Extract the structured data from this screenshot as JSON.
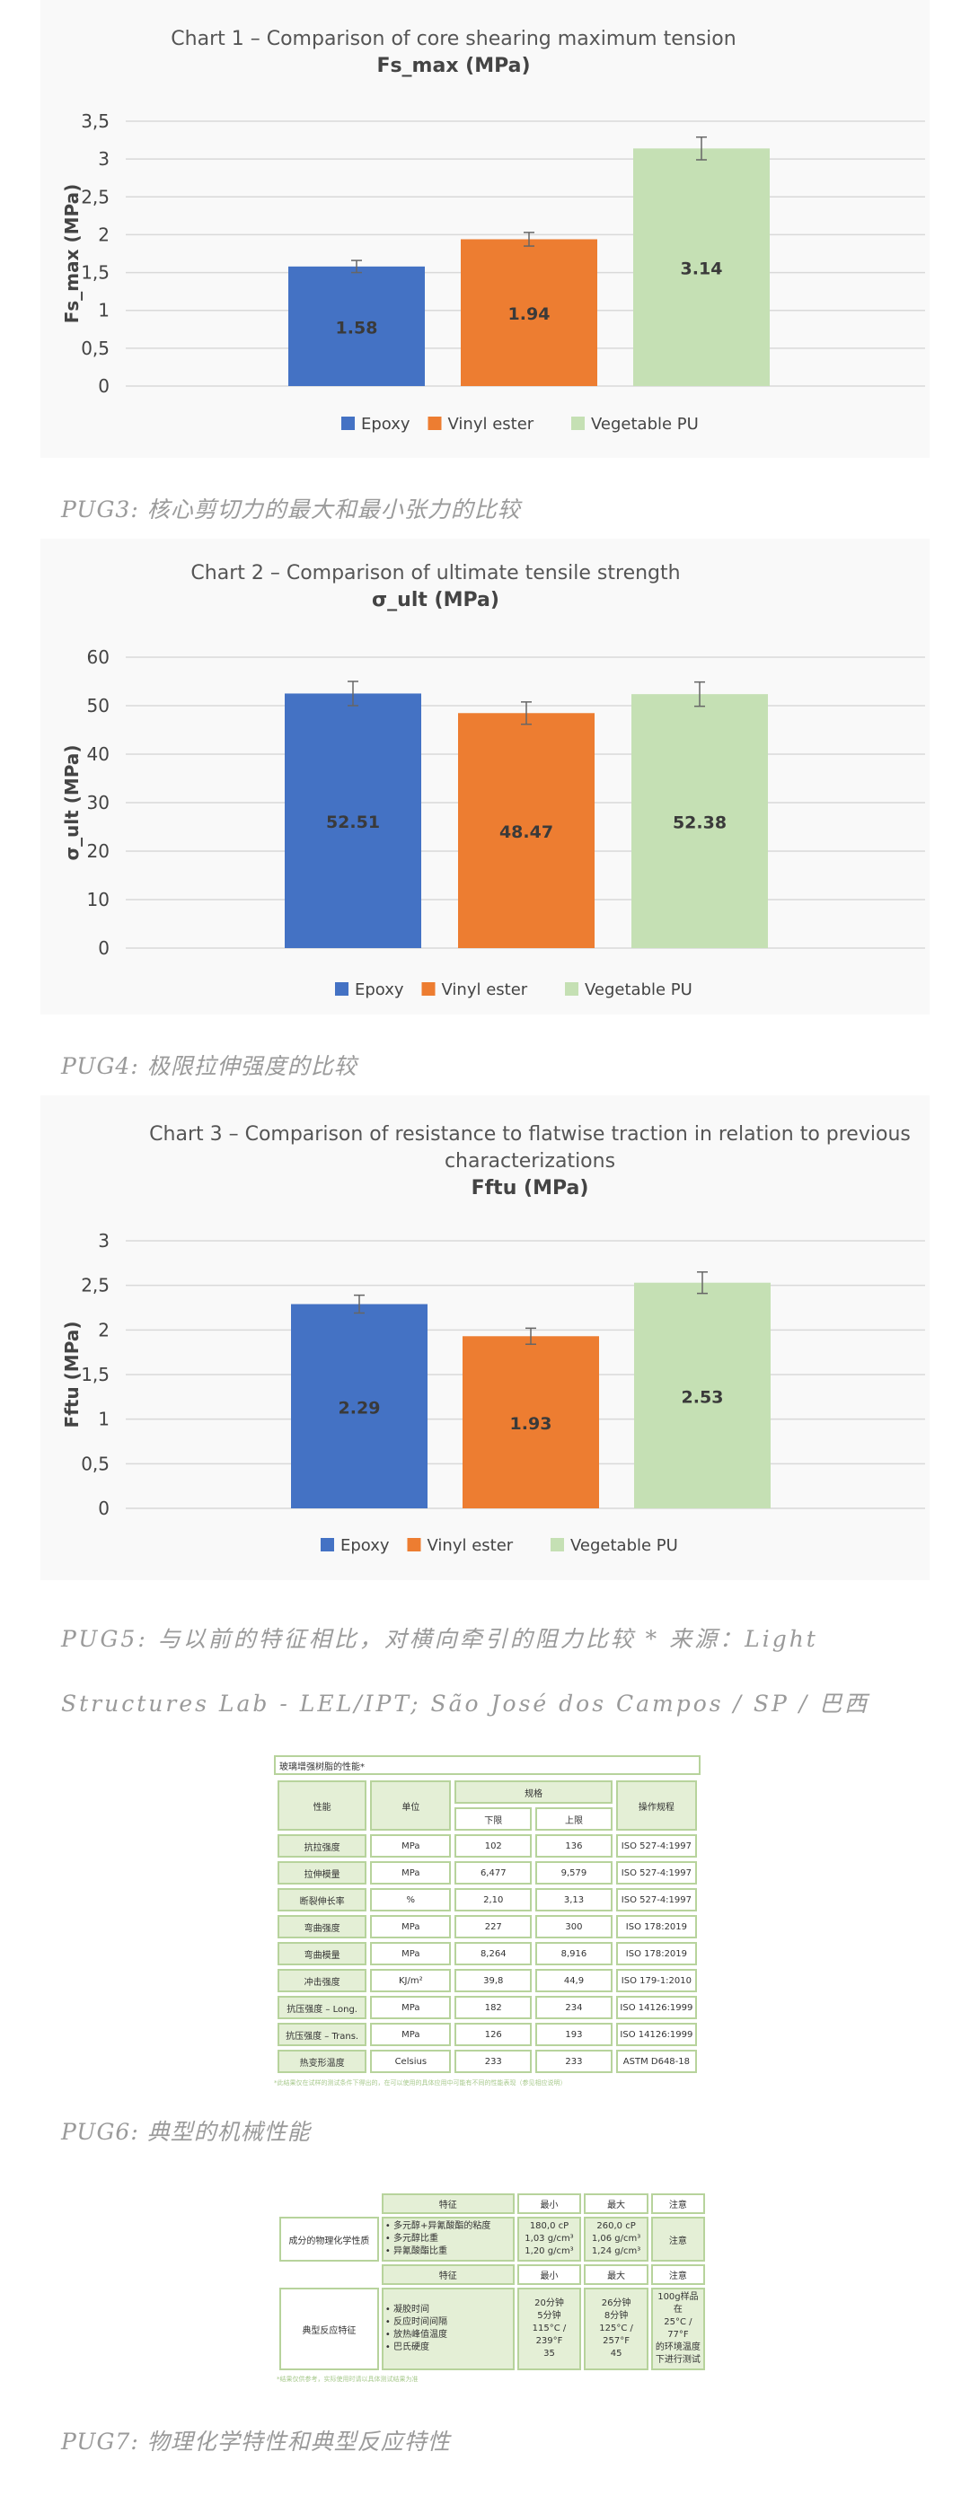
{
  "chart_data": [
    {
      "type": "bar",
      "title": "Chart 1 – Comparison of core shearing maximum tension",
      "subtitle": "Fs_max (MPa)",
      "ylabel": "Fs_max (MPa)",
      "xlabel": "",
      "ylim": [
        0,
        3.5
      ],
      "yticks": [
        "0",
        "0,5",
        "1",
        "1,5",
        "2",
        "2,5",
        "3",
        "3,5"
      ],
      "ytick_values": [
        0,
        0.5,
        1,
        1.5,
        2,
        2.5,
        3,
        3.5
      ],
      "categories": [
        "Epoxy",
        "Vinyl ester",
        "Vegetable PU"
      ],
      "values": [
        1.58,
        1.94,
        3.14
      ],
      "value_labels": [
        "1.58",
        "1.94",
        "3.14"
      ],
      "errors": [
        0.08,
        0.09,
        0.15
      ],
      "colors": [
        "#4472c4",
        "#ed7d31",
        "#c5e0b4"
      ],
      "legend": "bottom",
      "grid": true
    },
    {
      "type": "bar",
      "title": "Chart 2 – Comparison of ultimate tensile strength",
      "subtitle": "σ_ult (MPa)",
      "ylabel": "σ_ult (MPa)",
      "xlabel": "",
      "ylim": [
        0,
        60
      ],
      "yticks": [
        "0",
        "10",
        "20",
        "30",
        "40",
        "50",
        "60"
      ],
      "ytick_values": [
        0,
        10,
        20,
        30,
        40,
        50,
        60
      ],
      "categories": [
        "Epoxy",
        "Vinyl ester",
        "Vegetable PU"
      ],
      "values": [
        52.51,
        48.47,
        52.38
      ],
      "value_labels": [
        "52.51",
        "48.47",
        "52.38"
      ],
      "errors": [
        2.5,
        2.3,
        2.5
      ],
      "colors": [
        "#4472c4",
        "#ed7d31",
        "#c5e0b4"
      ],
      "legend": "bottom",
      "grid": true
    },
    {
      "type": "bar",
      "title": "Chart 3 – Comparison of resistance to flatwise traction in relation to previous characterizations",
      "title_lines": [
        "Chart 3 – Comparison of resistance to flatwise traction in relation to previous",
        "characterizations"
      ],
      "subtitle": "Fftu (MPa)",
      "ylabel": "Fftu (MPa)",
      "xlabel": "",
      "ylim": [
        0,
        3
      ],
      "yticks": [
        "0",
        "0,5",
        "1",
        "1,5",
        "2",
        "2,5",
        "3"
      ],
      "ytick_values": [
        0,
        0.5,
        1,
        1.5,
        2,
        2.5,
        3
      ],
      "categories": [
        "Epoxy",
        "Vinyl ester",
        "Vegetable PU"
      ],
      "values": [
        2.29,
        1.93,
        2.53
      ],
      "value_labels": [
        "2.29",
        "1.93",
        "2.53"
      ],
      "errors": [
        0.1,
        0.09,
        0.12
      ],
      "colors": [
        "#4472c4",
        "#ed7d31",
        "#c5e0b4"
      ],
      "legend": "bottom",
      "grid": true
    }
  ],
  "captions": {
    "pug3": "PUG3: 核心剪切力的最大和最小张力的比较",
    "pug4": "PUG4: 极限拉伸强度的比较",
    "pug5": "PUG5: 与以前的特征相比，对横向牵引的阻力比较 * 来源：Light Structures Lab - LEL/IPT; São José dos Campos / SP / 巴西",
    "pug6": "PUG6: 典型的机械性能",
    "pug7": "PUG7: 物理化学特性和典型反应特性"
  },
  "table1": {
    "title": "玻璃增强树脂的性能*",
    "header": {
      "property": "性能",
      "unit": "单位",
      "spec": "规格",
      "lower": "下限",
      "upper": "上限",
      "procedure": "操作规程"
    },
    "rows": [
      {
        "property": "抗拉强度",
        "unit": "MPa",
        "lower": "102",
        "upper": "136",
        "procedure": "ISO 527-4:1997"
      },
      {
        "property": "拉伸模量",
        "unit": "MPa",
        "lower": "6,477",
        "upper": "9,579",
        "procedure": "ISO 527-4:1997"
      },
      {
        "property": "断裂伸长率",
        "unit": "%",
        "lower": "2,10",
        "upper": "3,13",
        "procedure": "ISO 527-4:1997"
      },
      {
        "property": "弯曲强度",
        "unit": "MPa",
        "lower": "227",
        "upper": "300",
        "procedure": "ISO 178:2019"
      },
      {
        "property": "弯曲模量",
        "unit": "MPa",
        "lower": "8,264",
        "upper": "8,916",
        "procedure": "ISO 178:2019"
      },
      {
        "property": "冲击强度",
        "unit": "KJ/m²",
        "lower": "39,8",
        "upper": "44,9",
        "procedure": "ISO 179-1:2010"
      },
      {
        "property": "抗压强度 – Long.",
        "unit": "MPa",
        "lower": "182",
        "upper": "234",
        "procedure": "ISO 14126:1999"
      },
      {
        "property": "抗压强度 – Trans.",
        "unit": "MPa",
        "lower": "126",
        "upper": "193",
        "procedure": "ISO 14126:1999"
      },
      {
        "property": "热变形温度",
        "unit": "Celsius",
        "lower": "233",
        "upper": "233",
        "procedure": "ASTM D648-18"
      }
    ],
    "footnote": "*此结果仅在试样的测试条件下得出的，在可以使用的具体应用中可能有不同的性能表现（参见相应说明）"
  },
  "table2": {
    "header": {
      "feature": "特征",
      "min": "最小",
      "max": "最大",
      "note": "注意"
    },
    "group1": {
      "name": "成分的物理化学性质",
      "features": [
        "• 多元醇+异氰酸酯的粘度",
        "• 多元醇比重",
        "• 异氰酸酯比重"
      ],
      "min": [
        "180,0 cP",
        "1,03 g/cm³",
        "1,20 g/cm³"
      ],
      "max": [
        "260,0 cP",
        "1,06 g/cm³",
        "1,24 g/cm³"
      ],
      "note": "注意"
    },
    "group2": {
      "name": "典型反应特征",
      "features": [
        "• 凝胶时间",
        "• 反应时间间隔",
        "• 放热峰值温度",
        "• 巴氏硬度"
      ],
      "min": [
        "20分钟",
        "5分钟",
        "115°C / 239°F",
        "35"
      ],
      "max": [
        "26分钟",
        "8分钟",
        "125°C / 257°F",
        "45"
      ],
      "note": [
        "100g样品在",
        "25°C / 77°F",
        "的环境温度",
        "下进行测试"
      ]
    },
    "footnote": "*结果仅供参考，实际使用时请以具体测试结果为准"
  }
}
